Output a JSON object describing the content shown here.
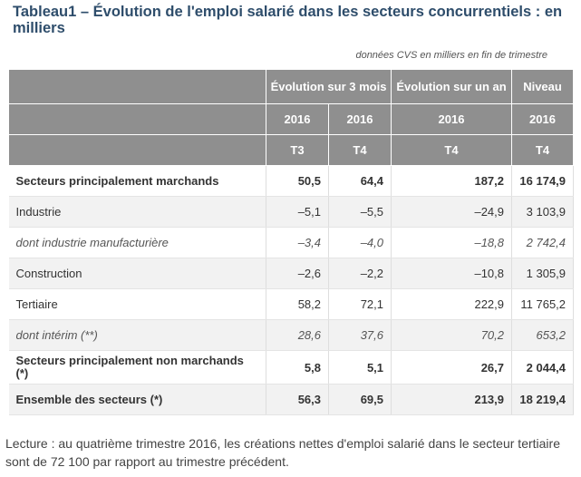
{
  "title": "Tableau1 – Évolution de l'emploi salarié dans les secteurs concurrentiels : en milliers",
  "note": "données CVS en milliers en fin de trimestre",
  "headers": {
    "evo3": "Évolution sur 3 mois",
    "evo1": "Évolution sur un an",
    "niveau": "Niveau",
    "years": [
      "2016",
      "2016",
      "2016",
      "2016"
    ],
    "quarters": [
      "T3",
      "T4",
      "T4",
      "T4"
    ]
  },
  "rows": [
    {
      "label": "Secteurs principalement marchands",
      "values": [
        "50,5",
        "64,4",
        "187,2",
        "16 174,9"
      ]
    },
    {
      "label": "Industrie",
      "values": [
        "–5,1",
        "–5,5",
        "–24,9",
        "3 103,9"
      ]
    },
    {
      "label": "dont industrie manufacturière",
      "values": [
        "–3,4",
        "–4,0",
        "–18,8",
        "2 742,4"
      ]
    },
    {
      "label": "Construction",
      "values": [
        "–2,6",
        "–2,2",
        "–10,8",
        "1 305,9"
      ]
    },
    {
      "label": "Tertiaire",
      "values": [
        "58,2",
        "72,1",
        "222,9",
        "11 765,2"
      ]
    },
    {
      "label": "dont intérim (**)",
      "values": [
        "28,6",
        "37,6",
        "70,2",
        "653,2"
      ]
    },
    {
      "label": "Secteurs principalement non marchands (*)",
      "values": [
        "5,8",
        "5,1",
        "26,7",
        "2 044,4"
      ]
    },
    {
      "label": "Ensemble des secteurs (*)",
      "values": [
        "56,3",
        "69,5",
        "213,9",
        "18 219,4"
      ]
    }
  ],
  "lecture": "Lecture : au quatrième trimestre 2016, les créations nettes d'emploi salarié dans le secteur tertiaire sont de 72 100 par rapport au trimestre précédent."
}
